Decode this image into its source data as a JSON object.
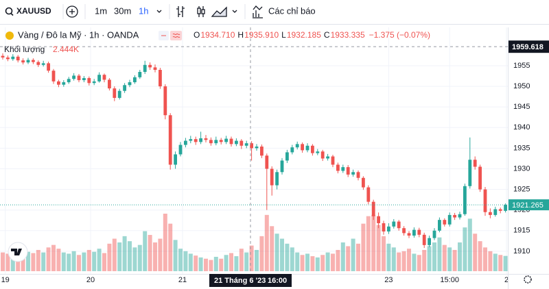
{
  "toolbar": {
    "symbol": "XAUUSD",
    "intervals": [
      "1m",
      "30m",
      "1h"
    ],
    "indicators": "Các chỉ báo"
  },
  "legend": {
    "instrument": "Vàng / Đô la Mỹ · 1h · OANDA",
    "ohlc": [
      {
        "key": "O",
        "value": "1934.710"
      },
      {
        "key": "H",
        "value": "1935.910"
      },
      {
        "key": "L",
        "value": "1932.185"
      },
      {
        "key": "C",
        "value": "1933.335"
      }
    ],
    "change": "−1.375 (−0.07%)",
    "volume_name": "Khối lượng",
    "volume_value": "2.444K"
  },
  "chart_data": {
    "type": "candlestick",
    "up_color": "#26a69a",
    "down_color": "#ef5350",
    "ylim": [
      1904.5,
      1964.3
    ],
    "yticks": [
      1910,
      1915,
      1920,
      1925,
      1930,
      1935,
      1940,
      1945,
      1950,
      1955
    ],
    "xticks": [
      {
        "value": 0.5,
        "label": "19"
      },
      {
        "value": 17.3,
        "label": "20"
      },
      {
        "value": 35.4,
        "label": "21"
      },
      {
        "value": 76,
        "label": "23"
      },
      {
        "value": 88,
        "label": "15:00"
      },
      {
        "value": 99.2,
        "label": "2"
      }
    ],
    "crosshair_price": 1959.618,
    "crosshair_time": "21 Tháng 6 '23",
    "crosshair_hour": "16:00",
    "last_price": 1921.265,
    "open": [
      1957.4,
      1957.0,
      1956.6,
      1957.2,
      1956.3,
      1955.8,
      1956.4,
      1955.9,
      1955.2,
      1955.6,
      1953.8,
      1951.2,
      1950.4,
      1951.0,
      1951.8,
      1952.6,
      1951.5,
      1952.0,
      1950.8,
      1951.2,
      1952.8,
      1951.6,
      1949.5,
      1947.2,
      1948.9,
      1950.3,
      1951.0,
      1952.2,
      1953.5,
      1955.2,
      1954.6,
      1954.0,
      1950.0,
      1943.0,
      1931.0,
      1933.5,
      1935.8,
      1936.8,
      1937.2,
      1936.5,
      1937.4,
      1937.0,
      1936.2,
      1937.0,
      1936.5,
      1937.3,
      1936.0,
      1936.8,
      1935.6,
      1936.2,
      1935.0,
      1935.4,
      1933.2,
      1930.0,
      1926.0,
      1929.2,
      1932.0,
      1934.0,
      1935.2,
      1936.0,
      1934.5,
      1935.6,
      1933.8,
      1934.2,
      1932.5,
      1933.0,
      1931.0,
      1929.5,
      1930.4,
      1928.6,
      1929.2,
      1927.8,
      1925.5,
      1922.0,
      1918.5,
      1916.8,
      1914.8,
      1916.0,
      1917.2,
      1915.6,
      1914.4,
      1913.8,
      1915.2,
      1914.0,
      1911.5,
      1913.2,
      1915.0,
      1917.6,
      1916.5,
      1918.8,
      1918.2,
      1919.0,
      1925.8,
      1932.2,
      1930.5,
      1925.0,
      1919.5,
      1918.8,
      1920.2,
      1919.8
    ],
    "high": [
      1958.0,
      1957.5,
      1957.8,
      1957.6,
      1956.8,
      1956.9,
      1956.8,
      1956.3,
      1956.2,
      1956.0,
      1954.2,
      1951.6,
      1951.5,
      1952.3,
      1953.2,
      1953.0,
      1952.5,
      1952.4,
      1951.8,
      1953.4,
      1953.1,
      1952.0,
      1950.0,
      1949.4,
      1950.8,
      1951.6,
      1952.7,
      1954.0,
      1956.2,
      1955.8,
      1955.3,
      1954.5,
      1950.5,
      1943.5,
      1934.2,
      1936.5,
      1937.5,
      1938.0,
      1937.8,
      1939.0,
      1938.2,
      1937.6,
      1937.8,
      1937.5,
      1938.0,
      1937.8,
      1937.4,
      1937.2,
      1936.8,
      1936.7,
      1936.0,
      1935.9,
      1933.7,
      1930.6,
      1929.8,
      1932.6,
      1934.6,
      1935.8,
      1936.6,
      1936.4,
      1936.2,
      1936.0,
      1934.8,
      1934.6,
      1933.6,
      1933.4,
      1931.5,
      1931.0,
      1930.9,
      1929.8,
      1929.6,
      1928.2,
      1926.0,
      1922.5,
      1919.4,
      1917.4,
      1916.8,
      1917.8,
      1917.6,
      1916.1,
      1914.9,
      1915.8,
      1915.7,
      1914.5,
      1913.8,
      1915.6,
      1918.2,
      1918.0,
      1919.4,
      1919.3,
      1919.6,
      1926.4,
      1937.6,
      1933.0,
      1931.0,
      1925.6,
      1920.4,
      1920.8,
      1920.6,
      1921.6
    ],
    "low": [
      1956.5,
      1956.1,
      1956.2,
      1955.8,
      1955.3,
      1955.4,
      1955.4,
      1954.7,
      1954.8,
      1953.3,
      1950.6,
      1949.8,
      1949.9,
      1950.6,
      1951.4,
      1951.0,
      1951.0,
      1950.2,
      1950.3,
      1950.9,
      1951.0,
      1949.0,
      1946.4,
      1946.8,
      1948.4,
      1949.8,
      1950.6,
      1951.8,
      1953.0,
      1954.0,
      1953.4,
      1949.4,
      1942.0,
      1929.8,
      1930.0,
      1933.0,
      1935.2,
      1936.2,
      1935.8,
      1936.0,
      1936.4,
      1935.6,
      1935.7,
      1935.9,
      1936.0,
      1935.4,
      1935.5,
      1934.8,
      1935.0,
      1932.0,
      1934.4,
      1932.6,
      1920.0,
      1923.5,
      1925.0,
      1928.6,
      1931.4,
      1933.5,
      1934.7,
      1933.9,
      1934.0,
      1933.2,
      1933.3,
      1931.9,
      1932.0,
      1930.4,
      1928.9,
      1929.0,
      1928.0,
      1928.1,
      1927.2,
      1924.9,
      1921.4,
      1917.6,
      1915.6,
      1914.0,
      1914.2,
      1915.5,
      1915.0,
      1913.8,
      1913.2,
      1913.3,
      1913.4,
      1910.8,
      1911.0,
      1912.7,
      1914.6,
      1916.0,
      1916.0,
      1917.6,
      1917.7,
      1918.6,
      1925.2,
      1929.8,
      1924.4,
      1918.6,
      1918.0,
      1918.4,
      1919.2,
      1919.4
    ],
    "close": [
      1957.0,
      1956.6,
      1957.2,
      1956.3,
      1955.8,
      1956.4,
      1955.9,
      1955.2,
      1955.6,
      1953.8,
      1951.2,
      1950.4,
      1951.0,
      1951.8,
      1952.6,
      1951.5,
      1952.0,
      1950.8,
      1951.2,
      1952.8,
      1951.6,
      1949.5,
      1947.2,
      1948.9,
      1950.3,
      1951.0,
      1952.2,
      1953.5,
      1955.2,
      1954.6,
      1954.0,
      1950.0,
      1943.0,
      1931.0,
      1933.5,
      1935.8,
      1936.8,
      1937.2,
      1936.5,
      1937.4,
      1937.0,
      1936.2,
      1937.0,
      1936.5,
      1937.3,
      1936.0,
      1936.8,
      1935.6,
      1936.2,
      1935.0,
      1935.4,
      1933.2,
      1930.0,
      1926.0,
      1929.2,
      1932.0,
      1934.0,
      1935.2,
      1936.0,
      1934.5,
      1935.6,
      1933.8,
      1934.2,
      1932.5,
      1933.0,
      1931.0,
      1929.5,
      1930.4,
      1928.6,
      1929.2,
      1927.8,
      1925.5,
      1922.0,
      1918.5,
      1916.8,
      1914.8,
      1916.0,
      1917.2,
      1915.6,
      1914.4,
      1913.8,
      1915.2,
      1914.0,
      1911.5,
      1913.2,
      1915.0,
      1917.6,
      1916.5,
      1918.8,
      1918.2,
      1919.0,
      1925.8,
      1932.2,
      1930.5,
      1925.0,
      1919.5,
      1918.8,
      1920.2,
      1919.8,
      1921.265
    ],
    "volume": [
      3000,
      2800,
      3600,
      3200,
      2600,
      3100,
      2900,
      3400,
      3000,
      3800,
      4200,
      3600,
      3000,
      2800,
      3200,
      2600,
      3000,
      3400,
      3100,
      3600,
      2900,
      4400,
      5200,
      4600,
      5600,
      4800,
      3800,
      4200,
      6400,
      5800,
      4600,
      5200,
      9200,
      7600,
      5000,
      3600,
      3200,
      2800,
      2500,
      2200,
      2000,
      1800,
      2300,
      2000,
      2600,
      2900,
      2400,
      3600,
      3000,
      4100,
      3400,
      5600,
      9000,
      7200,
      6000,
      5200,
      4400,
      3800,
      3000,
      2600,
      2800,
      2400,
      2200,
      2600,
      3000,
      2800,
      3400,
      4600,
      4000,
      5200,
      4400,
      7600,
      8800,
      9000,
      7400,
      5600,
      4400,
      3800,
      3000,
      3200,
      3600,
      2800,
      2600,
      3400,
      4000,
      4600,
      5400,
      4200,
      3800,
      3400,
      4600,
      7000,
      8400,
      6000,
      4800,
      3800,
      3200,
      2800,
      2600,
      2444
    ]
  }
}
